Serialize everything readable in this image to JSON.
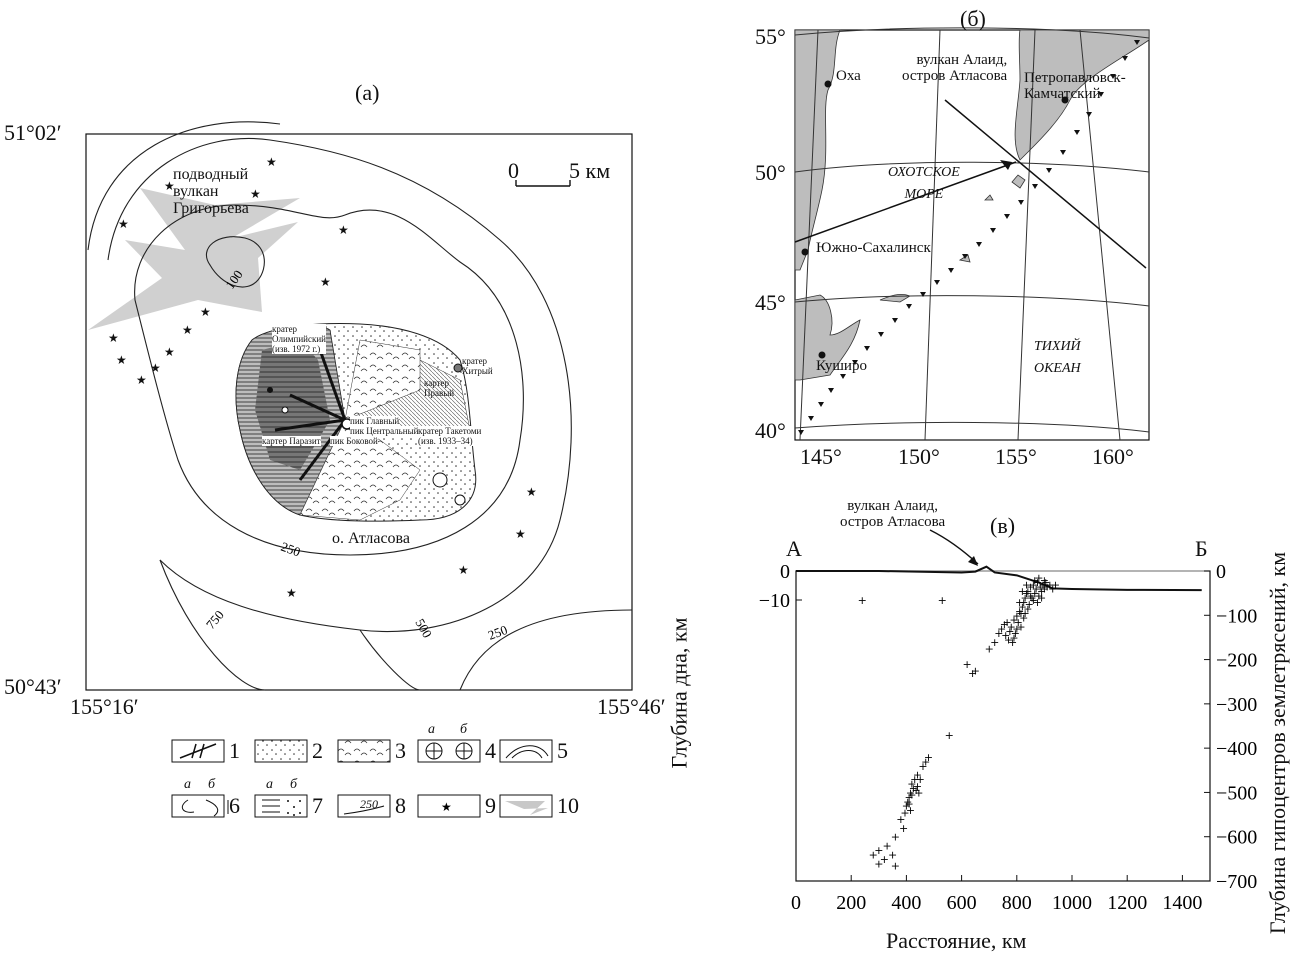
{
  "panel_a": {
    "label": "(а)",
    "lat_top": "51°02′",
    "lat_bottom": "50°43′",
    "lon_left": "155°16′",
    "lon_right": "155°46′",
    "scale_zero": "0",
    "scale_text": "5 км",
    "volcano_label": [
      "подводный",
      "вулкан",
      "Григорьева"
    ],
    "island_label": "о. Атласова",
    "contours": [
      "100",
      "250",
      "250",
      "500",
      "750",
      "250"
    ],
    "craters": {
      "olympic": [
        "кратер",
        "Олимпийский",
        "(изв. 1972 г.)"
      ],
      "khitry": [
        "кратер",
        "Хитрый"
      ],
      "pravy": [
        "картер",
        "Правый"
      ],
      "taketomi": [
        "кратер Такетоми",
        "(изв. 1933–34)"
      ],
      "parazit": "картер  Паразит",
      "glavny": "пик Главный",
      "centralny": "пик Центральный",
      "bokovoy": "пик Боковой"
    }
  },
  "legend": {
    "items": [
      "1",
      "2",
      "3",
      "4",
      "5",
      "6",
      "7",
      "8",
      "9",
      "10"
    ],
    "sub_a": "а",
    "sub_b": "б",
    "contour_sample": "250"
  },
  "panel_b": {
    "label": "(б)",
    "lat_labels": [
      "55°",
      "50°",
      "45°",
      "40°"
    ],
    "lon_labels": [
      "145°",
      "150°",
      "155°",
      "160°"
    ],
    "places": {
      "okha": "Оха",
      "alaid": [
        "вулкан Алаид,",
        "остров Атласова"
      ],
      "petropavlovsk": [
        "Петропавловск-",
        "Камчатский"
      ],
      "sea": [
        "ОХОТСКОЕ",
        "МОРЕ"
      ],
      "yuzhno": "Южно-Сахалинск",
      "kushiro": "Куширо",
      "ocean": [
        "ТИХИЙ",
        "ОКЕАН"
      ]
    }
  },
  "panel_c": {
    "label": "(в)",
    "volcano_label": [
      "вулкан Алаид,",
      "остров Атласова"
    ],
    "point_a": "А",
    "point_b": "Б",
    "chart_data": {
      "type": "scatter",
      "xlabel": "Расстояние, км",
      "ylabel_left": "Глубина дна, км",
      "ylabel_right": "Глубина гипоцентров землетрясений, км",
      "xlim": [
        0,
        1500
      ],
      "ylim": [
        0,
        700
      ],
      "x_ticks": [
        "0",
        "200",
        "400",
        "600",
        "800",
        "1000",
        "1200",
        "1400"
      ],
      "y_ticks_right": [
        "0",
        "−100",
        "−200",
        "−300",
        "−400",
        "−500",
        "−600",
        "−700"
      ],
      "y_ticks_left": [
        "0",
        "−10"
      ],
      "hypocenters": [
        {
          "x": 240,
          "y": 65
        },
        {
          "x": 530,
          "y": 65
        },
        {
          "x": 620,
          "y": 210
        },
        {
          "x": 640,
          "y": 230
        },
        {
          "x": 650,
          "y": 225
        },
        {
          "x": 700,
          "y": 175
        },
        {
          "x": 720,
          "y": 160
        },
        {
          "x": 735,
          "y": 140
        },
        {
          "x": 745,
          "y": 130
        },
        {
          "x": 755,
          "y": 120
        },
        {
          "x": 765,
          "y": 115
        },
        {
          "x": 775,
          "y": 135
        },
        {
          "x": 780,
          "y": 125
        },
        {
          "x": 790,
          "y": 110
        },
        {
          "x": 795,
          "y": 140
        },
        {
          "x": 800,
          "y": 100
        },
        {
          "x": 810,
          "y": 90
        },
        {
          "x": 815,
          "y": 125
        },
        {
          "x": 820,
          "y": 80
        },
        {
          "x": 825,
          "y": 70
        },
        {
          "x": 830,
          "y": 60
        },
        {
          "x": 835,
          "y": 50
        },
        {
          "x": 840,
          "y": 45
        },
        {
          "x": 845,
          "y": 75
        },
        {
          "x": 850,
          "y": 35
        },
        {
          "x": 855,
          "y": 60
        },
        {
          "x": 860,
          "y": 30
        },
        {
          "x": 865,
          "y": 50
        },
        {
          "x": 870,
          "y": 40
        },
        {
          "x": 875,
          "y": 25
        },
        {
          "x": 880,
          "y": 55
        },
        {
          "x": 885,
          "y": 35
        },
        {
          "x": 890,
          "y": 45
        },
        {
          "x": 895,
          "y": 30
        },
        {
          "x": 900,
          "y": 40
        },
        {
          "x": 905,
          "y": 25
        },
        {
          "x": 910,
          "y": 35
        },
        {
          "x": 920,
          "y": 30
        },
        {
          "x": 930,
          "y": 40
        },
        {
          "x": 940,
          "y": 30
        },
        {
          "x": 815,
          "y": 95
        },
        {
          "x": 825,
          "y": 105
        },
        {
          "x": 805,
          "y": 115
        },
        {
          "x": 790,
          "y": 150
        },
        {
          "x": 770,
          "y": 155
        },
        {
          "x": 840,
          "y": 85
        },
        {
          "x": 860,
          "y": 65
        },
        {
          "x": 875,
          "y": 70
        },
        {
          "x": 890,
          "y": 60
        },
        {
          "x": 850,
          "y": 55
        },
        {
          "x": 830,
          "y": 95
        },
        {
          "x": 800,
          "y": 130
        },
        {
          "x": 785,
          "y": 160
        },
        {
          "x": 760,
          "y": 145
        },
        {
          "x": 810,
          "y": 70
        },
        {
          "x": 820,
          "y": 45
        },
        {
          "x": 835,
          "y": 30
        },
        {
          "x": 865,
          "y": 20
        },
        {
          "x": 880,
          "y": 15
        },
        {
          "x": 900,
          "y": 20
        },
        {
          "x": 555,
          "y": 370
        },
        {
          "x": 480,
          "y": 420
        },
        {
          "x": 470,
          "y": 430
        },
        {
          "x": 460,
          "y": 440
        },
        {
          "x": 440,
          "y": 460
        },
        {
          "x": 430,
          "y": 470
        },
        {
          "x": 420,
          "y": 480
        },
        {
          "x": 425,
          "y": 490
        },
        {
          "x": 415,
          "y": 500
        },
        {
          "x": 410,
          "y": 510
        },
        {
          "x": 405,
          "y": 520
        },
        {
          "x": 420,
          "y": 505
        },
        {
          "x": 435,
          "y": 495
        },
        {
          "x": 440,
          "y": 485
        },
        {
          "x": 400,
          "y": 530
        },
        {
          "x": 395,
          "y": 545
        },
        {
          "x": 410,
          "y": 525
        },
        {
          "x": 450,
          "y": 470
        },
        {
          "x": 445,
          "y": 500
        },
        {
          "x": 415,
          "y": 540
        },
        {
          "x": 380,
          "y": 560
        },
        {
          "x": 360,
          "y": 600
        },
        {
          "x": 330,
          "y": 620
        },
        {
          "x": 300,
          "y": 630
        },
        {
          "x": 280,
          "y": 640
        },
        {
          "x": 350,
          "y": 640
        },
        {
          "x": 320,
          "y": 650
        },
        {
          "x": 300,
          "y": 660
        },
        {
          "x": 360,
          "y": 665
        },
        {
          "x": 390,
          "y": 580
        }
      ],
      "bathymetry_depth_km": [
        {
          "x": 0,
          "y": 0
        },
        {
          "x": 300,
          "y": 0
        },
        {
          "x": 600,
          "y": 0.5
        },
        {
          "x": 650,
          "y": 0.2
        },
        {
          "x": 690,
          "y": -1.5
        },
        {
          "x": 720,
          "y": 0.5
        },
        {
          "x": 800,
          "y": 1.5
        },
        {
          "x": 880,
          "y": 4
        },
        {
          "x": 930,
          "y": 6
        },
        {
          "x": 1000,
          "y": 6.2
        },
        {
          "x": 1200,
          "y": 6.5
        },
        {
          "x": 1470,
          "y": 6.6
        }
      ]
    }
  }
}
